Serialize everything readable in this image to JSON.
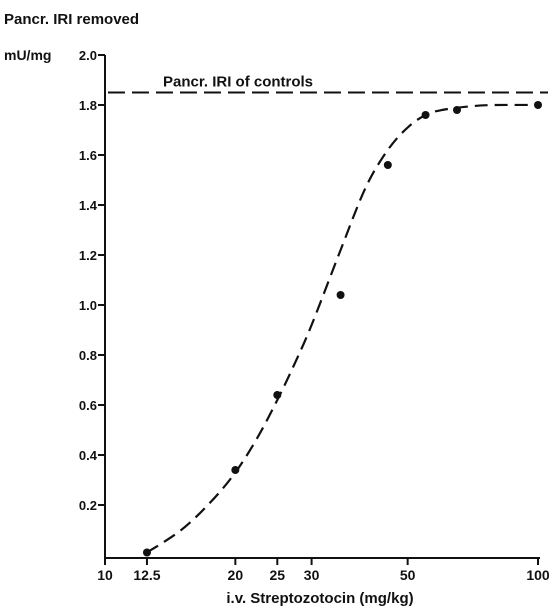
{
  "chart_data": {
    "type": "scatter",
    "title": "Pancr. IRI removed",
    "ylabel": "mU/mg",
    "xlabel": "i.v. Streptozotocin (mg/kg)",
    "x_scale": "log",
    "xlim": [
      10,
      100
    ],
    "ylim": [
      0,
      2.0
    ],
    "x_ticks": [
      10,
      12.5,
      20,
      25,
      30,
      50,
      100
    ],
    "x_tick_labels": [
      "10",
      "12.5",
      "20",
      "25",
      "30",
      "50",
      "100"
    ],
    "y_ticks": [
      0.2,
      0.4,
      0.6,
      0.8,
      1.0,
      1.2,
      1.4,
      1.6,
      1.8,
      2.0
    ],
    "y_tick_labels": [
      "0.2",
      "0.4",
      "0.6",
      "0.8",
      "1.0",
      "1.2",
      "1.4",
      "1.6",
      "1.8",
      "2.0"
    ],
    "grid": false,
    "series": [
      {
        "x": [
          12.5,
          20,
          25,
          35,
          45,
          55,
          65,
          100
        ],
        "y": [
          0.01,
          0.34,
          0.64,
          1.04,
          1.56,
          1.76,
          1.78,
          1.8
        ]
      }
    ],
    "fit_curve": {
      "style": "dashed",
      "x": [
        12.5,
        15,
        17.5,
        20,
        22.5,
        25,
        27.5,
        30,
        35,
        40,
        45,
        50,
        55,
        60,
        70,
        80,
        100
      ],
      "y": [
        0.01,
        0.1,
        0.21,
        0.33,
        0.47,
        0.62,
        0.77,
        0.92,
        1.22,
        1.47,
        1.62,
        1.71,
        1.76,
        1.78,
        1.795,
        1.8,
        1.8
      ]
    },
    "reference_line": {
      "label": "Pancr. IRI of controls",
      "y": 1.85,
      "style": "dashed"
    }
  }
}
